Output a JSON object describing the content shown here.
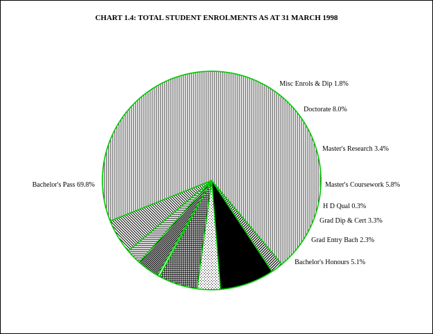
{
  "chart_data": {
    "type": "pie",
    "title": "CHART 1.4: TOTAL STUDENT ENROLMENTS AS AT 31 MARCH 1998",
    "slices": [
      {
        "key": "misc",
        "label": "Misc Enrols & Dip 1.8%",
        "value": 1.8,
        "pattern": "diag"
      },
      {
        "key": "doctorate",
        "label": "Doctorate 8.0%",
        "value": 8.0,
        "pattern": "black"
      },
      {
        "key": "masters-research",
        "label": "Master's Research 3.4%",
        "value": 3.4,
        "pattern": "dots"
      },
      {
        "key": "masters-coursework",
        "label": "Master's Coursework 5.8%",
        "value": 5.8,
        "pattern": "grid"
      },
      {
        "key": "hd-qual",
        "label": "H D Qual 0.3%",
        "value": 0.3,
        "pattern": "solid-white"
      },
      {
        "key": "grad-dip-cert",
        "label": "Grad Dip & Cert 3.3%",
        "value": 3.3,
        "pattern": "diag-dense"
      },
      {
        "key": "grad-entry-bach",
        "label": "Grad Entry Bach 2.3%",
        "value": 2.3,
        "pattern": "horiz"
      },
      {
        "key": "bachelors-honours",
        "label": "Bachelor's Honours 5.1%",
        "value": 5.1,
        "pattern": "diag-back"
      },
      {
        "key": "bachelors-pass",
        "label": "Bachelor's Pass 69.8%",
        "value": 69.8,
        "pattern": "vert"
      }
    ],
    "colors": {
      "edge": "#00cc00",
      "ink": "#000000",
      "paper": "#ffffff"
    }
  }
}
